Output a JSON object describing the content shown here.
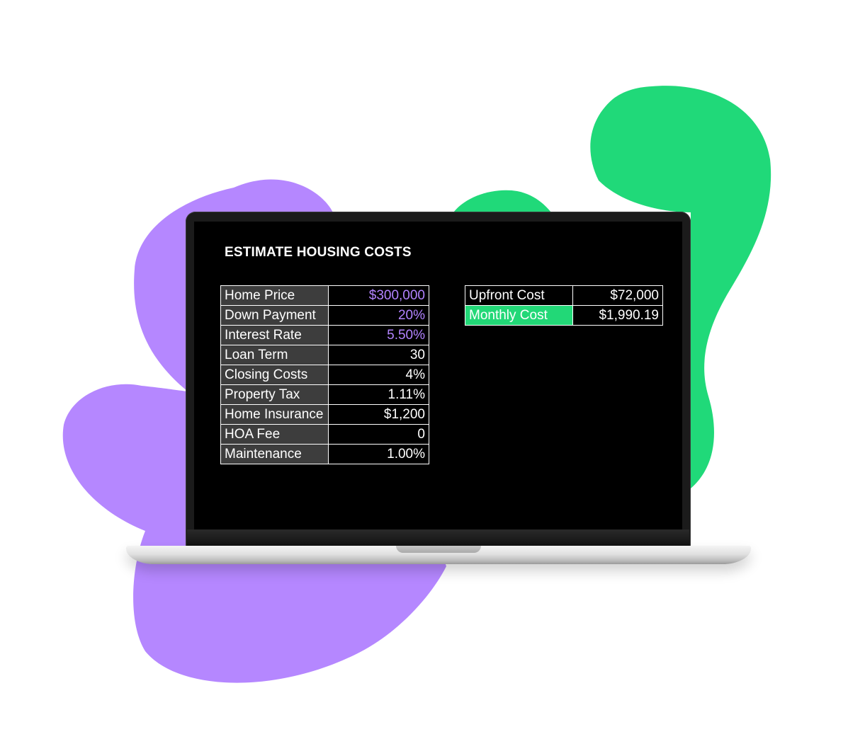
{
  "title": "ESTIMATE HOUSING COSTS",
  "colors": {
    "purple_accent": "#b283ff",
    "green_accent": "#22d877",
    "blob_purple": "#b587ff",
    "blob_green": "#20d979",
    "screen_bg": "#000000",
    "label_cell_bg": "#3d3d3d"
  },
  "inputs": {
    "rows": [
      {
        "label": "Home Price",
        "value": "$300,000",
        "highlight": "purple"
      },
      {
        "label": "Down Payment",
        "value": "20%",
        "highlight": "purple"
      },
      {
        "label": "Interest Rate",
        "value": "5.50%",
        "highlight": "purple"
      },
      {
        "label": "Loan Term",
        "value": "30",
        "highlight": ""
      },
      {
        "label": "Closing Costs",
        "value": "4%",
        "highlight": ""
      },
      {
        "label": "Property Tax",
        "value": "1.11%",
        "highlight": ""
      },
      {
        "label": "Home Insurance",
        "value": "$1,200",
        "highlight": ""
      },
      {
        "label": "HOA Fee",
        "value": "0",
        "highlight": ""
      },
      {
        "label": "Maintenance",
        "value": "1.00%",
        "highlight": ""
      }
    ]
  },
  "results": {
    "rows": [
      {
        "label": "Upfront Cost",
        "value": "$72,000",
        "highlight": ""
      },
      {
        "label": "Monthly Cost",
        "value": "$1,990.19",
        "highlight": "green"
      }
    ]
  }
}
